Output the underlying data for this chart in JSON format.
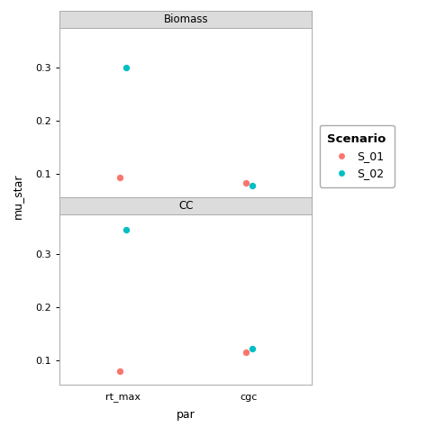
{
  "panels": [
    "Biomass",
    "CC"
  ],
  "x_categories": [
    "rt_max",
    "cgc"
  ],
  "x_label": "par",
  "y_label": "mu_star",
  "scenarios": [
    "S_01",
    "S_02"
  ],
  "colors": {
    "S_01": "#F8766D",
    "S_02": "#00BFC4"
  },
  "data": {
    "Biomass": {
      "rt_max": {
        "S_01": 0.093,
        "S_02": 0.299
      },
      "cgc": {
        "S_01": 0.082,
        "S_02": 0.077
      }
    },
    "CC": {
      "rt_max": {
        "S_01": 0.079,
        "S_02": 0.346
      },
      "cgc": {
        "S_01": 0.115,
        "S_02": 0.122
      }
    }
  },
  "ylim": [
    0.055,
    0.375
  ],
  "yticks": [
    0.1,
    0.2,
    0.3
  ],
  "panel_strip_color": "#DCDCDC",
  "plot_bg": "#FFFFFF",
  "fig_bg": "#FFFFFF",
  "legend_title": "Scenario",
  "dot_size": 28,
  "spine_color": "#AAAAAA",
  "grid_color": "#FFFFFF",
  "strip_border_color": "#AAAAAA",
  "title_fontsize": 8.5,
  "axis_fontsize": 9,
  "tick_fontsize": 8,
  "legend_fontsize": 9,
  "legend_title_fontsize": 9.5
}
